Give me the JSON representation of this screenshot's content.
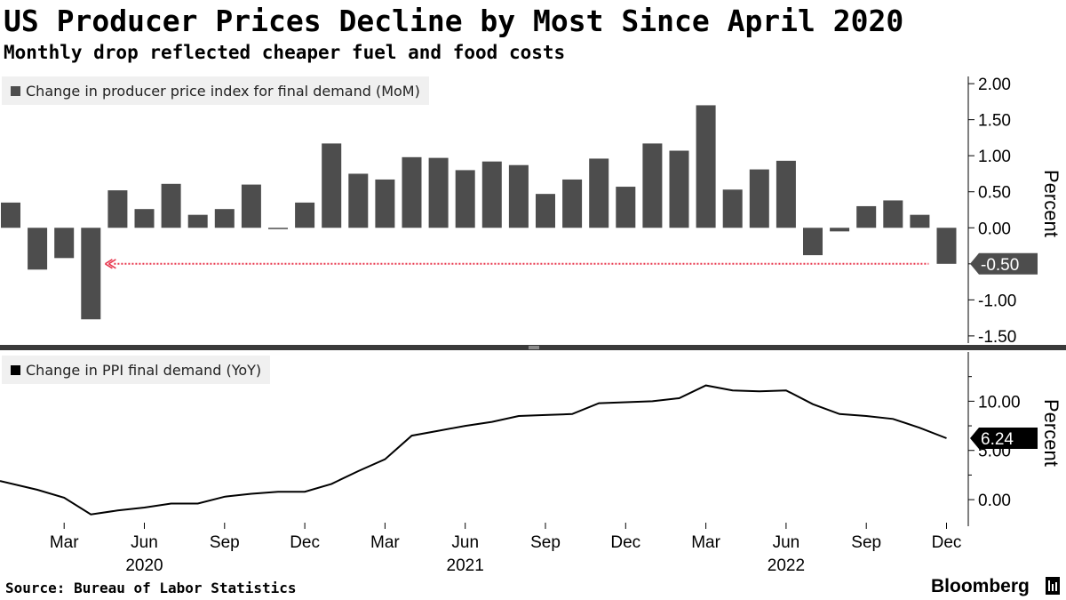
{
  "title": "US Producer Prices Decline by Most Since April 2020",
  "subtitle": "Monthly drop reflected cheaper fuel and food costs",
  "source": "Source: Bureau of Labor Statistics",
  "brand": "Bloomberg",
  "colors": {
    "bar": "#4d4d4d",
    "line": "#000000",
    "reference_line": "#e8384f",
    "last_value_box_top": "#4d4d4d",
    "last_value_box_bottom": "#000000",
    "legend_bg": "#f0f0f0"
  },
  "chart_data": [
    {
      "type": "bar",
      "legend": "Change in producer price index for final demand (MoM)",
      "ylabel": "Percent",
      "ylim": [
        -1.6,
        2.1
      ],
      "yticks": [
        "2.00",
        "1.50",
        "1.00",
        "0.50",
        "0.00",
        "-0.50",
        "-1.00",
        "-1.50"
      ],
      "ytick_values": [
        2.0,
        1.5,
        1.0,
        0.5,
        0.0,
        -0.5,
        -1.0,
        -1.5
      ],
      "last_value_label": "-0.50",
      "reference_line_value": -0.5,
      "categories": [
        "2020-01",
        "2020-02",
        "2020-03",
        "2020-04",
        "2020-05",
        "2020-06",
        "2020-07",
        "2020-08",
        "2020-09",
        "2020-10",
        "2020-11",
        "2020-12",
        "2021-01",
        "2021-02",
        "2021-03",
        "2021-04",
        "2021-05",
        "2021-06",
        "2021-07",
        "2021-08",
        "2021-09",
        "2021-10",
        "2021-11",
        "2021-12",
        "2022-01",
        "2022-02",
        "2022-03",
        "2022-04",
        "2022-05",
        "2022-06",
        "2022-07",
        "2022-08",
        "2022-09",
        "2022-10",
        "2022-11",
        "2022-12"
      ],
      "values": [
        0.35,
        -0.58,
        -0.42,
        -1.27,
        0.52,
        0.26,
        0.61,
        0.18,
        0.26,
        0.6,
        -0.01,
        0.35,
        1.17,
        0.75,
        0.67,
        0.98,
        0.97,
        0.8,
        0.92,
        0.87,
        0.47,
        0.67,
        0.96,
        0.57,
        1.17,
        1.07,
        1.7,
        0.53,
        0.81,
        0.93,
        -0.38,
        -0.05,
        0.3,
        0.38,
        0.18,
        -0.5
      ]
    },
    {
      "type": "line",
      "legend": "Change in PPI final demand (YoY)",
      "ylabel": "Percent",
      "ylim": [
        -2.7,
        15
      ],
      "yticks": [
        "10.00",
        "5.00",
        "0.00"
      ],
      "ytick_values": [
        10,
        5,
        0
      ],
      "last_value_label": "6.24",
      "x": [
        "2020-01",
        "2020-02",
        "2020-03",
        "2020-04",
        "2020-05",
        "2020-06",
        "2020-07",
        "2020-08",
        "2020-09",
        "2020-10",
        "2020-11",
        "2020-12",
        "2021-01",
        "2021-02",
        "2021-03",
        "2021-04",
        "2021-05",
        "2021-06",
        "2021-07",
        "2021-08",
        "2021-09",
        "2021-10",
        "2021-11",
        "2021-12",
        "2022-01",
        "2022-02",
        "2022-03",
        "2022-04",
        "2022-05",
        "2022-06",
        "2022-07",
        "2022-08",
        "2022-09",
        "2022-10",
        "2022-11",
        "2022-12"
      ],
      "values": [
        1.9,
        1.0,
        0.2,
        -1.5,
        -1.1,
        -0.8,
        -0.4,
        -0.4,
        0.3,
        0.6,
        0.8,
        0.8,
        1.6,
        2.9,
        4.1,
        6.5,
        7.0,
        7.5,
        7.9,
        8.5,
        8.6,
        8.7,
        9.8,
        9.9,
        10.0,
        10.3,
        11.6,
        11.1,
        11.0,
        11.1,
        9.7,
        8.7,
        8.5,
        8.2,
        7.3,
        6.24
      ]
    }
  ],
  "x_axis": {
    "month_labels": [
      "Mar",
      "Jun",
      "Sep",
      "Dec",
      "Mar",
      "Jun",
      "Sep",
      "Dec",
      "Mar",
      "Jun",
      "Sep",
      "Dec"
    ],
    "month_indices": [
      2,
      5,
      8,
      11,
      14,
      17,
      20,
      23,
      26,
      29,
      32,
      35
    ],
    "year_labels": [
      "2020",
      "2021",
      "2022"
    ],
    "year_indices": [
      5,
      17,
      29
    ]
  }
}
